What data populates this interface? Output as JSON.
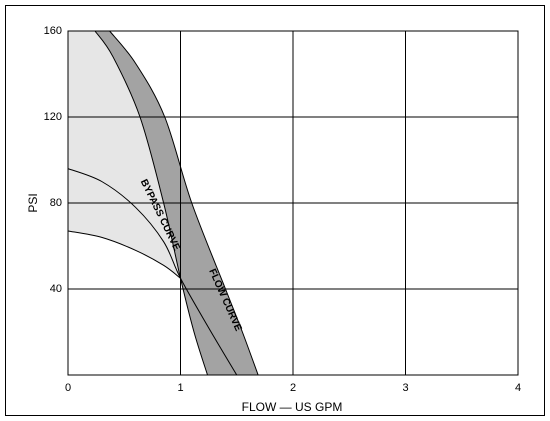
{
  "chart_data": {
    "type": "line",
    "xlabel": "FLOW — US GPM",
    "ylabel": "PSI",
    "xlim": [
      0,
      4
    ],
    "xticks": [
      0,
      1,
      2,
      3,
      4
    ],
    "ylim": [
      0,
      160
    ],
    "yticks": [
      40,
      80,
      120,
      160
    ],
    "grid": true,
    "annotations": [
      "BYPASS CURVE",
      "FLOW CURVE"
    ],
    "light_fill": "#e6e6e6",
    "dark_fill": "#a3a3a3",
    "series": [
      {
        "color": "#000000",
        "x": [
          0.24,
          0.4,
          0.64,
          0.85,
          1.0,
          1.12,
          1.24
        ],
        "values": [
          160,
          148,
          120,
          80,
          45,
          20,
          0
        ]
      },
      {
        "color": "#000000",
        "x": [
          0.37,
          0.6,
          0.86,
          1.1,
          1.4,
          1.55,
          1.69
        ],
        "values": [
          160,
          145,
          120,
          80,
          40,
          20,
          0
        ]
      },
      {
        "color": "#000000",
        "x": [
          0,
          0.3,
          0.6,
          0.85,
          1.0,
          1.25,
          1.5
        ],
        "values": [
          96,
          90,
          78,
          62,
          45,
          22,
          0
        ]
      },
      {
        "color": "#000000",
        "x": [
          0,
          0.3,
          0.6,
          0.85,
          1.0
        ],
        "values": [
          67,
          64,
          58,
          51,
          45
        ]
      }
    ]
  }
}
